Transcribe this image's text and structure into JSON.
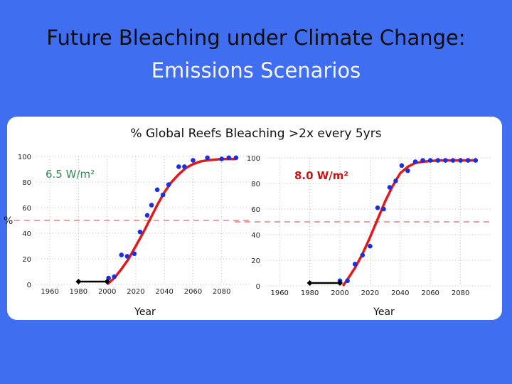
{
  "slide": {
    "title_line1": "Future Bleaching under Climate Change:",
    "title_line2": "Emissions Scenarios"
  },
  "panel": {
    "title": "% Global Reefs Bleaching >2x every 5yrs",
    "y_label": "%"
  },
  "colors": {
    "background": "#3f6ef1",
    "points": "#1a2fe0",
    "fit": "#e01a1a",
    "threshold": "#d84040",
    "bar": "#000000",
    "label_red": "#cc1111",
    "label_green": "#2e8b57"
  },
  "chart_data": [
    {
      "type": "scatter",
      "label": "6.5 W/m²",
      "xlabel": "Year",
      "ylabel": "%",
      "xlim": [
        1950,
        2100
      ],
      "ylim": [
        0,
        100
      ],
      "xticks": [
        1960,
        1980,
        2000,
        2020,
        2040,
        2060,
        2080
      ],
      "yticks": [
        0,
        20,
        40,
        60,
        80,
        100
      ],
      "xtick_labels": [
        "1960",
        "1980",
        "2000",
        "2020",
        "2040",
        "2060",
        "2080"
      ],
      "ytick_labels": [
        "0",
        "20",
        "40",
        "60",
        "80",
        "100"
      ],
      "threshold": 50,
      "grid": true,
      "points": {
        "x": [
          2001,
          2005,
          2010,
          2014,
          2019,
          2023,
          2028,
          2031,
          2035,
          2039,
          2043,
          2050,
          2054,
          2060,
          2070,
          2080,
          2085,
          2090
        ],
        "y": [
          5,
          6,
          23,
          22,
          24,
          41,
          54,
          62,
          74,
          70,
          78,
          92,
          92,
          97,
          99,
          98,
          99,
          99
        ]
      },
      "fit": {
        "x": [
          2000,
          2005,
          2010,
          2015,
          2020,
          2025,
          2030,
          2035,
          2040,
          2045,
          2050,
          2055,
          2060,
          2065,
          2070,
          2075,
          2080,
          2085,
          2090
        ],
        "y": [
          0,
          5,
          12,
          20,
          30,
          40,
          51,
          62,
          72,
          80,
          86,
          91,
          94,
          96,
          97,
          97.5,
          98,
          98,
          98
        ]
      },
      "bar": {
        "x_start": 1980,
        "x_end": 2000,
        "y": 0
      }
    },
    {
      "type": "scatter",
      "label": "8.0 W/m²",
      "xlabel": "Year",
      "ylabel": "",
      "xlim": [
        1950,
        2100
      ],
      "ylim": [
        0,
        100
      ],
      "xticks": [
        1960,
        1980,
        2000,
        2020,
        2040,
        2060,
        2080
      ],
      "yticks": [
        0,
        20,
        40,
        60,
        80,
        100
      ],
      "xtick_labels": [
        "1960",
        "1980",
        "2000",
        "2020",
        "2040",
        "2060",
        "2080"
      ],
      "ytick_labels": [
        "0",
        "20",
        "40",
        "60",
        "80",
        "100"
      ],
      "threshold": 50,
      "grid": true,
      "points": {
        "x": [
          2000,
          2005,
          2010,
          2015,
          2020,
          2025,
          2029,
          2033,
          2037,
          2041,
          2045,
          2050,
          2055,
          2060,
          2065,
          2070,
          2075,
          2080,
          2085,
          2090
        ],
        "y": [
          4,
          4,
          17,
          24,
          31,
          61,
          60,
          77,
          82,
          94,
          90,
          97,
          98,
          98,
          98,
          98,
          98,
          98,
          98,
          98
        ]
      },
      "fit": {
        "x": [
          2002,
          2005,
          2010,
          2015,
          2020,
          2025,
          2030,
          2035,
          2040,
          2045,
          2050,
          2055,
          2060,
          2065,
          2070,
          2075,
          2080,
          2085,
          2090
        ],
        "y": [
          0,
          5,
          14,
          25,
          38,
          52,
          66,
          78,
          88,
          93,
          96,
          97,
          97.5,
          98,
          98,
          98,
          98,
          98,
          98
        ]
      },
      "bar": {
        "x_start": 1980,
        "x_end": 2000,
        "y": 0
      }
    }
  ]
}
